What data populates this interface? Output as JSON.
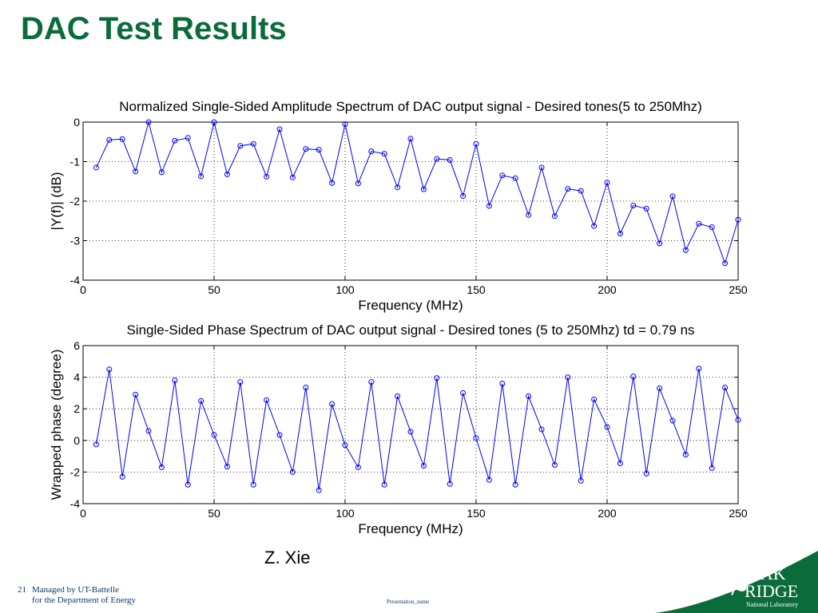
{
  "slide": {
    "title": "DAC Test Results",
    "author": "Z. Xie",
    "slide_number": "21",
    "footer_line1": "Managed by UT-Battelle",
    "footer_line2": "for the Department of Energy",
    "presentation_name": "Presentation_name",
    "logo": {
      "line1": "OAK",
      "line2": "RIDGE",
      "line3": "National Laboratory",
      "icon": "oak-leaf-icon"
    }
  },
  "colors": {
    "title": "#0b6b3a",
    "series": "#0000ff",
    "grid": "#000000",
    "footer": "#0b3a6b"
  },
  "chart_data": [
    {
      "type": "line",
      "title": "Normalized Single-Sided Amplitude Spectrum of DAC output signal - Desired tones(5 to 250Mhz)",
      "xlabel": "Frequency (MHz)",
      "ylabel": "|Y(f)| (dB)",
      "xlim": [
        0,
        250
      ],
      "ylim": [
        -4,
        0
      ],
      "xticks": [
        0,
        50,
        100,
        150,
        200,
        250
      ],
      "yticks": [
        -4,
        -3,
        -2,
        -1,
        0
      ],
      "grid": true,
      "marker": "circle",
      "x": [
        5,
        10,
        15,
        20,
        25,
        30,
        35,
        40,
        45,
        50,
        55,
        60,
        65,
        70,
        75,
        80,
        85,
        90,
        95,
        100,
        105,
        110,
        115,
        120,
        125,
        130,
        135,
        140,
        145,
        150,
        155,
        160,
        165,
        170,
        175,
        180,
        185,
        190,
        195,
        200,
        205,
        210,
        215,
        220,
        225,
        230,
        235,
        240,
        245,
        250
      ],
      "values": [
        -1.15,
        -0.45,
        -0.43,
        -1.25,
        0,
        -1.27,
        -0.47,
        -0.4,
        -1.37,
        0,
        -1.32,
        -0.6,
        -0.55,
        -1.38,
        -0.18,
        -1.4,
        -0.68,
        -0.7,
        -1.54,
        -0.05,
        -1.55,
        -0.74,
        -0.8,
        -1.65,
        -0.42,
        -1.7,
        -0.93,
        -0.96,
        -1.87,
        -0.55,
        -2.12,
        -1.35,
        -1.42,
        -2.35,
        -1.15,
        -2.38,
        -1.69,
        -1.74,
        -2.63,
        -1.53,
        -2.82,
        -2.11,
        -2.19,
        -3.07,
        -1.88,
        -3.24,
        -2.57,
        -2.66,
        -3.57,
        -2.47
      ]
    },
    {
      "type": "line",
      "title": "Single-Sided Phase Spectrum of DAC output signal - Desired tones (5 to 250Mhz) td = 0.79 ns",
      "xlabel": "Frequency (MHz)",
      "ylabel": "Wrapped phase (degree)",
      "xlim": [
        0,
        250
      ],
      "ylim": [
        -4,
        6
      ],
      "xticks": [
        0,
        50,
        100,
        150,
        200,
        250
      ],
      "yticks": [
        -4,
        -2,
        0,
        2,
        4,
        6
      ],
      "grid": true,
      "marker": "circle",
      "x": [
        5,
        10,
        15,
        20,
        25,
        30,
        35,
        40,
        45,
        50,
        55,
        60,
        65,
        70,
        75,
        80,
        85,
        90,
        95,
        100,
        105,
        110,
        115,
        120,
        125,
        130,
        135,
        140,
        145,
        150,
        155,
        160,
        165,
        170,
        175,
        180,
        185,
        190,
        195,
        200,
        205,
        210,
        215,
        220,
        225,
        230,
        235,
        240,
        245,
        250
      ],
      "values": [
        -0.25,
        4.5,
        -2.3,
        2.9,
        0.6,
        -1.7,
        3.8,
        -2.8,
        2.5,
        0.35,
        -1.65,
        3.7,
        -2.8,
        2.55,
        0.35,
        -2.0,
        3.35,
        -3.15,
        2.3,
        -0.3,
        -1.7,
        3.7,
        -2.8,
        2.8,
        0.55,
        -1.6,
        3.95,
        -2.75,
        3.0,
        0.15,
        -2.5,
        3.6,
        -2.8,
        2.8,
        0.7,
        -1.55,
        4.0,
        -2.55,
        2.6,
        0.85,
        -1.45,
        4.05,
        -2.1,
        3.3,
        1.25,
        -0.9,
        4.55,
        -1.75,
        3.35,
        1.3
      ]
    }
  ]
}
